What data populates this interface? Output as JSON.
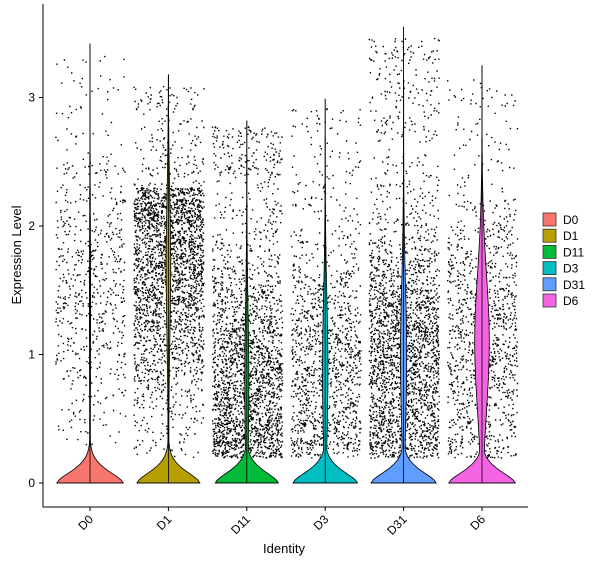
{
  "chart_data": {
    "type": "violin",
    "xlabel": "Identity",
    "ylabel": "Expression Level",
    "ylim": [
      -0.2,
      3.65
    ],
    "yticks": [
      0,
      1,
      2,
      3
    ],
    "grid": false,
    "legend_position": "right",
    "categories": [
      "D0",
      "D1",
      "D11",
      "D3",
      "D31",
      "D6"
    ],
    "series": [
      {
        "name": "D0",
        "color": "#F8766D",
        "max": 3.42,
        "zero_peak_width": 0.95,
        "body_width": 0.01,
        "body_center": 1.5,
        "point_density": 0.25,
        "point_range": [
          0.3,
          2.5
        ]
      },
      {
        "name": "D1",
        "color": "#B79F00",
        "max": 3.18,
        "zero_peak_width": 0.9,
        "body_width": 0.06,
        "body_center": 1.7,
        "point_density": 1.0,
        "point_range": [
          0.2,
          2.3
        ]
      },
      {
        "name": "D11",
        "color": "#00BA38",
        "max": 2.82,
        "zero_peak_width": 0.9,
        "body_width": 0.05,
        "body_center": 0.8,
        "point_density": 0.9,
        "point_range": [
          0.2,
          2.4
        ]
      },
      {
        "name": "D3",
        "color": "#00BFC4",
        "max": 2.99,
        "zero_peak_width": 0.92,
        "body_width": 0.07,
        "body_center": 0.9,
        "point_density": 0.5,
        "point_range": [
          0.2,
          2.3
        ]
      },
      {
        "name": "D31",
        "color": "#619CFF",
        "max": 3.55,
        "zero_peak_width": 0.93,
        "body_width": 0.08,
        "body_center": 1.0,
        "point_density": 1.0,
        "point_range": [
          0.2,
          2.7
        ]
      },
      {
        "name": "D6",
        "color": "#F564E3",
        "max": 3.25,
        "zero_peak_width": 0.95,
        "body_width": 0.2,
        "body_center": 1.1,
        "point_density": 0.45,
        "point_range": [
          0.2,
          2.2
        ]
      }
    ],
    "legend": [
      "D0",
      "D1",
      "D11",
      "D3",
      "D31",
      "D6"
    ]
  }
}
